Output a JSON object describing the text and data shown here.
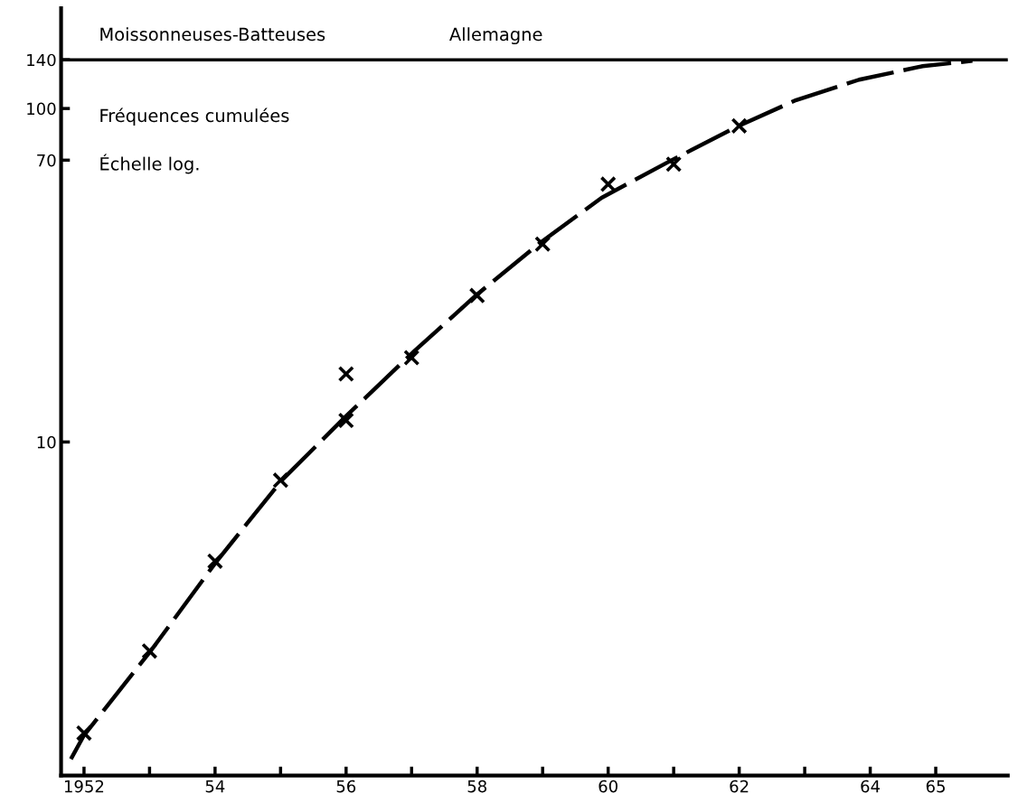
{
  "chart_data": {
    "type": "line",
    "title": "Moissonneuses-Batteuses",
    "subtitle": "Allemagne",
    "annotations": [
      "Fréquences cumulées",
      "Échelle log."
    ],
    "x": [
      1952,
      1953,
      1954,
      1955,
      1956,
      1956,
      1957,
      1958,
      1959,
      1960,
      1961,
      1962
    ],
    "series": [
      {
        "type": "scatter",
        "color": "#000000",
        "marker": "cross",
        "values": [
          1.34,
          2.36,
          4.39,
          7.68,
          11.6,
          16.0,
          17.9,
          27.5,
          39.2,
          59.3,
          68.1,
          88.7
        ]
      },
      {
        "color": "#000000",
        "marker": "none",
        "line_style": "dashed",
        "x": [
          1951.8,
          1952,
          1953.03,
          1954.01,
          1955.02,
          1955.99,
          1957.05,
          1958.0,
          1958.95,
          1959.9,
          1960.91,
          1961.94,
          1962.87,
          1963.83,
          1964.8,
          1965.56
        ],
        "values": [
          1.12,
          1.32,
          2.38,
          4.35,
          7.68,
          11.9,
          18.8,
          27.7,
          39.4,
          54.0,
          69.0,
          87.7,
          106,
          122,
          134,
          139
        ]
      }
    ],
    "log": "y",
    "xlim": [
      1951.65,
      1966.1
    ],
    "ylim": [
      1,
      200
    ],
    "xticks": [
      1952,
      {
        "value": 1953,
        "label": null
      },
      {
        "value": 1954,
        "label": "54"
      },
      {
        "value": 1955,
        "label": null
      },
      {
        "value": 1956,
        "label": "56"
      },
      {
        "value": 1957,
        "label": null
      },
      {
        "value": 1958,
        "label": "58"
      },
      {
        "value": 1959,
        "label": null
      },
      {
        "value": 1960,
        "label": "60"
      },
      {
        "value": 1961,
        "label": null
      },
      {
        "value": 1962,
        "label": "62"
      },
      {
        "value": 1963,
        "label": null
      },
      {
        "value": 1964,
        "label": "64"
      },
      {
        "value": 1965,
        "label": "65"
      }
    ],
    "yticks": [
      10,
      70,
      100,
      140
    ],
    "ref_lines": [
      {
        "axis": "y",
        "value": 140,
        "color": "#000000",
        "line_style": "solid"
      }
    ],
    "grid": false,
    "legend": false
  }
}
